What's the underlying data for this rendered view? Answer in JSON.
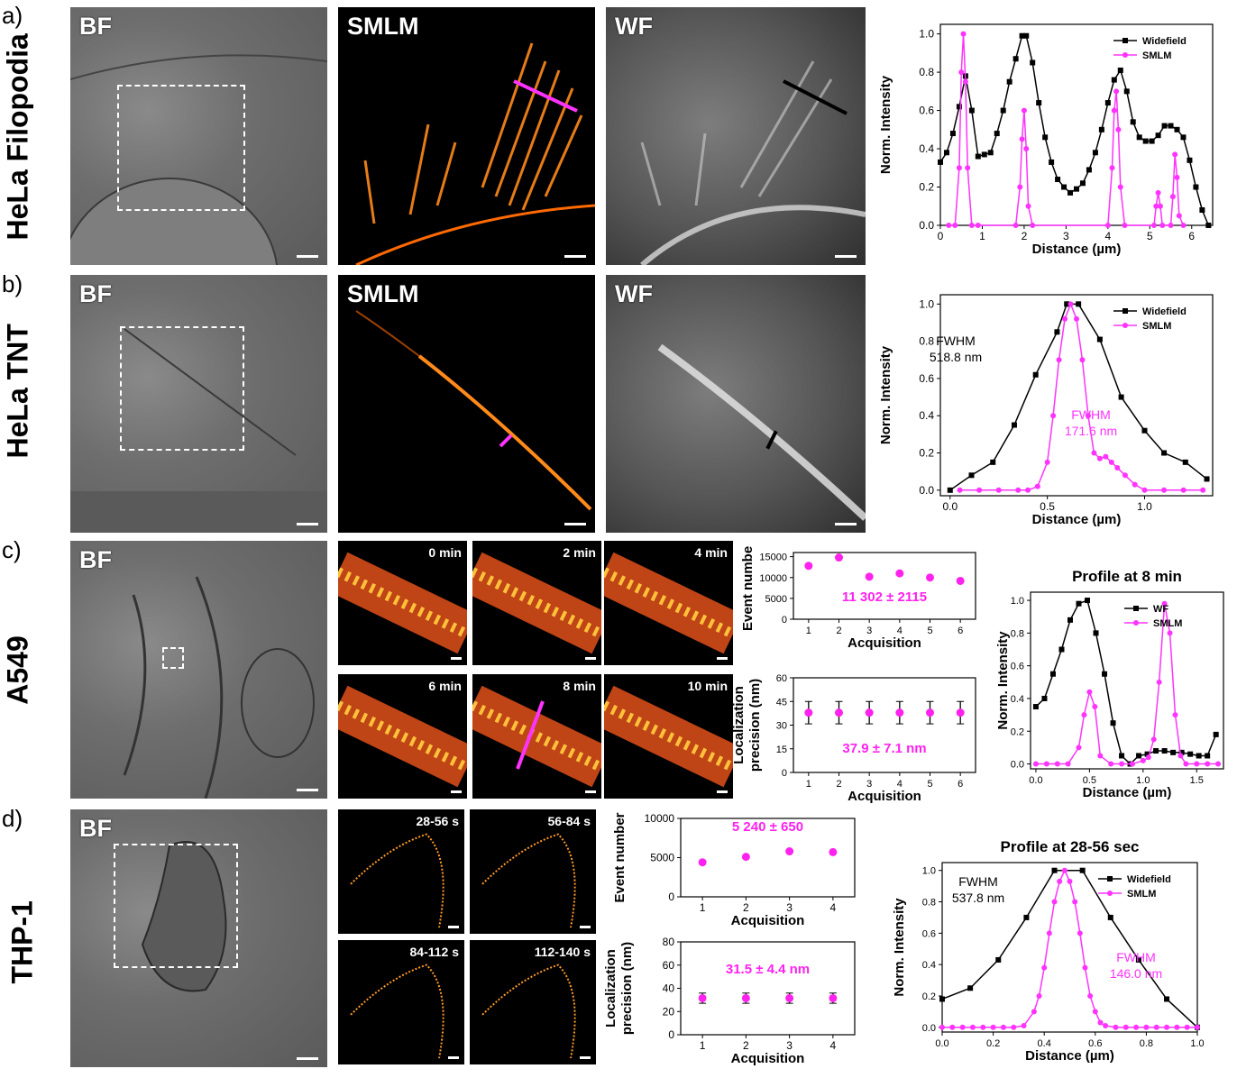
{
  "rows": {
    "a": {
      "letter": "a)",
      "label": "HeLa Filopodia"
    },
    "b": {
      "letter": "b)",
      "label": "HeLa TNT"
    },
    "c": {
      "letter": "c)",
      "label": "A549"
    },
    "d": {
      "letter": "d)",
      "label": "THP-1"
    }
  },
  "tags": {
    "bf": "BF",
    "smlm": "SMLM",
    "wf": "WF"
  },
  "timepoints_c": [
    "0 min",
    "2 min",
    "4 min",
    "6 min",
    "8 min",
    "10 min"
  ],
  "timepoints_d": [
    "28-56 s",
    "56-84 s",
    "84-112 s",
    "112-140 s"
  ],
  "colors": {
    "widefield": "#000000",
    "smlm": "#ff33ff",
    "accent_magenta": "#ff22ee"
  },
  "chart_data": [
    {
      "id": "a_profile",
      "type": "line",
      "xlabel": "Distance (µm)",
      "ylabel": "Norm. Intensity",
      "xlim": [
        0,
        6.5
      ],
      "ylim": [
        0,
        1.05
      ],
      "xticks": [
        0,
        1,
        2,
        3,
        4,
        5,
        6
      ],
      "yticks": [
        0.0,
        0.2,
        0.4,
        0.6,
        0.8,
        1.0
      ],
      "legend_position": "top-right",
      "series": [
        {
          "name": "Widefield",
          "color": "#000000",
          "marker": "square",
          "x": [
            0,
            0.15,
            0.3,
            0.45,
            0.6,
            0.75,
            0.9,
            1.05,
            1.2,
            1.35,
            1.5,
            1.65,
            1.8,
            1.95,
            2.05,
            2.2,
            2.35,
            2.5,
            2.65,
            2.8,
            2.95,
            3.1,
            3.25,
            3.4,
            3.55,
            3.7,
            3.85,
            4.0,
            4.15,
            4.3,
            4.45,
            4.6,
            4.75,
            4.9,
            5.05,
            5.2,
            5.35,
            5.5,
            5.65,
            5.8,
            5.95,
            6.1,
            6.25,
            6.4
          ],
          "y": [
            0.33,
            0.38,
            0.48,
            0.62,
            0.78,
            0.6,
            0.36,
            0.37,
            0.38,
            0.48,
            0.6,
            0.75,
            0.87,
            0.99,
            0.99,
            0.85,
            0.64,
            0.46,
            0.33,
            0.24,
            0.2,
            0.17,
            0.19,
            0.22,
            0.29,
            0.38,
            0.5,
            0.64,
            0.76,
            0.81,
            0.7,
            0.54,
            0.46,
            0.44,
            0.44,
            0.47,
            0.52,
            0.52,
            0.5,
            0.46,
            0.34,
            0.2,
            0.08,
            0.0
          ]
        },
        {
          "name": "SMLM",
          "color": "#ff33ff",
          "marker": "circle",
          "x": [
            0.2,
            0.35,
            0.45,
            0.5,
            0.55,
            0.6,
            0.65,
            0.75,
            0.9,
            1.8,
            1.9,
            1.95,
            2.0,
            2.05,
            2.1,
            2.2,
            4.0,
            4.1,
            4.15,
            4.2,
            4.25,
            4.3,
            4.4,
            5.1,
            5.15,
            5.2,
            5.25,
            5.3,
            5.5,
            5.55,
            5.6,
            5.65,
            5.7,
            5.8
          ],
          "y": [
            0,
            0,
            0.3,
            0.8,
            1.0,
            0.75,
            0.3,
            0,
            0,
            0,
            0.2,
            0.45,
            0.6,
            0.4,
            0.1,
            0,
            0,
            0.3,
            0.6,
            0.7,
            0.5,
            0.2,
            0,
            0,
            0.1,
            0.17,
            0.1,
            0,
            0,
            0.15,
            0.37,
            0.25,
            0.05,
            0
          ]
        }
      ]
    },
    {
      "id": "b_profile",
      "type": "line",
      "xlabel": "Distance (µm)",
      "ylabel": "Norm. Intensity",
      "xlim": [
        -0.05,
        1.35
      ],
      "ylim": [
        -0.03,
        1.05
      ],
      "xticks": [
        0.0,
        0.5,
        1.0
      ],
      "yticks": [
        0.0,
        0.2,
        0.4,
        0.6,
        0.8,
        1.0
      ],
      "legend_position": "top-right",
      "annotations": [
        {
          "text": "FWHM",
          "text2": "518.8 nm",
          "color": "#000000"
        },
        {
          "text": "FWHM",
          "text2": "171.6 nm",
          "color": "#ff33ff"
        }
      ],
      "series": [
        {
          "name": "Widefield",
          "color": "#000000",
          "marker": "square",
          "x": [
            0.0,
            0.11,
            0.22,
            0.33,
            0.44,
            0.55,
            0.6,
            0.66,
            0.77,
            0.88,
            1.0,
            1.1,
            1.21,
            1.32
          ],
          "y": [
            0.0,
            0.08,
            0.15,
            0.35,
            0.62,
            0.85,
            1.0,
            1.0,
            0.81,
            0.5,
            0.32,
            0.2,
            0.15,
            0.06
          ]
        },
        {
          "name": "SMLM",
          "color": "#ff33ff",
          "marker": "circle",
          "x": [
            0.05,
            0.15,
            0.25,
            0.35,
            0.4,
            0.45,
            0.5,
            0.53,
            0.56,
            0.59,
            0.62,
            0.65,
            0.68,
            0.71,
            0.74,
            0.77,
            0.8,
            0.83,
            0.86,
            0.9,
            0.95,
            1.0,
            1.1,
            1.2,
            1.3
          ],
          "y": [
            0,
            0,
            0,
            0,
            0,
            0.02,
            0.15,
            0.4,
            0.7,
            0.92,
            1.0,
            0.92,
            0.7,
            0.4,
            0.2,
            0.17,
            0.18,
            0.15,
            0.12,
            0.08,
            0.03,
            0.0,
            0,
            0,
            0
          ]
        }
      ]
    },
    {
      "id": "c_events",
      "type": "scatter",
      "xlabel": "Acquisition",
      "ylabel": "Event number",
      "xlim": [
        0.5,
        6.5
      ],
      "ylim": [
        0,
        16000
      ],
      "xticks": [
        1,
        2,
        3,
        4,
        5,
        6
      ],
      "yticks": [
        0,
        5000,
        10000,
        15000
      ],
      "annotation": "11 302 ± 2115",
      "series": [
        {
          "name": "",
          "color": "#ff22ee",
          "x": [
            1,
            2,
            3,
            4,
            5,
            6
          ],
          "y": [
            12800,
            14800,
            10200,
            11000,
            10000,
            9200
          ]
        }
      ]
    },
    {
      "id": "c_precision",
      "type": "scatter",
      "xlabel": "Acquisition",
      "ylabel": "Localization precision (nm)",
      "xlim": [
        0.5,
        6.5
      ],
      "ylim": [
        0,
        60
      ],
      "xticks": [
        1,
        2,
        3,
        4,
        5,
        6
      ],
      "yticks": [
        0,
        15,
        30,
        45,
        60
      ],
      "annotation": "37.9 ± 7.1 nm",
      "series": [
        {
          "name": "",
          "color": "#ff22ee",
          "x": [
            1,
            2,
            3,
            4,
            5,
            6
          ],
          "y": [
            37.9,
            37.9,
            37.9,
            37.9,
            37.9,
            37.9
          ],
          "err": [
            7.1,
            7.1,
            7.1,
            7.1,
            7.1,
            7.1
          ]
        }
      ]
    },
    {
      "id": "c_profile",
      "type": "line",
      "title": "Profile at 8 min",
      "xlabel": "Distance (µm)",
      "ylabel": "Norm. Intensity",
      "xlim": [
        -0.05,
        1.75
      ],
      "ylim": [
        -0.03,
        1.05
      ],
      "xticks": [
        0.0,
        0.5,
        1.0,
        1.5
      ],
      "yticks": [
        0.0,
        0.2,
        0.4,
        0.6,
        0.8,
        1.0
      ],
      "legend_position": "top-right",
      "series": [
        {
          "name": "WF",
          "color": "#000000",
          "marker": "square",
          "x": [
            0.0,
            0.08,
            0.16,
            0.24,
            0.32,
            0.4,
            0.48,
            0.56,
            0.64,
            0.72,
            0.8,
            0.88,
            0.96,
            1.04,
            1.12,
            1.2,
            1.28,
            1.36,
            1.44,
            1.52,
            1.6,
            1.68
          ],
          "y": [
            0.35,
            0.4,
            0.55,
            0.7,
            0.88,
            0.98,
            1.0,
            0.8,
            0.55,
            0.25,
            0.05,
            0.0,
            0.05,
            0.06,
            0.08,
            0.08,
            0.07,
            0.07,
            0.06,
            0.05,
            0.05,
            0.18
          ]
        },
        {
          "name": "SMLM",
          "color": "#ff33ff",
          "marker": "circle",
          "x": [
            0.0,
            0.1,
            0.2,
            0.3,
            0.4,
            0.45,
            0.5,
            0.55,
            0.6,
            0.7,
            0.8,
            0.9,
            1.0,
            1.05,
            1.1,
            1.15,
            1.2,
            1.25,
            1.3,
            1.35,
            1.4,
            1.5,
            1.6,
            1.7
          ],
          "y": [
            0,
            0,
            0,
            0,
            0.1,
            0.3,
            0.44,
            0.35,
            0.05,
            0,
            0,
            0,
            0.02,
            0.04,
            0.15,
            0.5,
            0.98,
            0.8,
            0.3,
            0.05,
            0,
            0,
            0,
            0
          ]
        }
      ]
    },
    {
      "id": "d_events",
      "type": "scatter",
      "xlabel": "Acquisition",
      "ylabel": "Event number",
      "xlim": [
        0.5,
        4.5
      ],
      "ylim": [
        0,
        10000
      ],
      "xticks": [
        1,
        2,
        3,
        4
      ],
      "yticks": [
        0,
        5000,
        10000
      ],
      "annotation": "5 240 ± 650",
      "series": [
        {
          "name": "",
          "color": "#ff22ee",
          "x": [
            1,
            2,
            3,
            4
          ],
          "y": [
            4400,
            5100,
            5800,
            5700
          ]
        }
      ]
    },
    {
      "id": "d_precision",
      "type": "scatter",
      "xlabel": "Acquisition",
      "ylabel": "Localization precision (nm)",
      "xlim": [
        0.5,
        4.5
      ],
      "ylim": [
        0,
        80
      ],
      "xticks": [
        1,
        2,
        3,
        4
      ],
      "yticks": [
        0,
        20,
        40,
        60,
        80
      ],
      "annotation": "31.5 ± 4.4 nm",
      "series": [
        {
          "name": "",
          "color": "#ff22ee",
          "x": [
            1,
            2,
            3,
            4
          ],
          "y": [
            31.5,
            31.5,
            31.5,
            31.5
          ],
          "err": [
            4.4,
            4.4,
            4.4,
            4.4
          ]
        }
      ]
    },
    {
      "id": "d_profile",
      "type": "line",
      "title": "Profile at 28-56 sec",
      "xlabel": "Distance (µm)",
      "ylabel": "Norm. Intensity",
      "xlim": [
        0.0,
        1.0
      ],
      "ylim": [
        -0.03,
        1.05
      ],
      "xticks": [
        0.0,
        0.2,
        0.4,
        0.6,
        0.8,
        1.0
      ],
      "yticks": [
        0.0,
        0.2,
        0.4,
        0.6,
        0.8,
        1.0
      ],
      "legend_position": "top-right",
      "annotations": [
        {
          "text": "FWHM",
          "text2": "537.8 nm",
          "color": "#000000"
        },
        {
          "text": "FWHM",
          "text2": "146.0 nm",
          "color": "#ff33ff"
        }
      ],
      "series": [
        {
          "name": "Widefield",
          "color": "#000000",
          "marker": "square",
          "x": [
            0.0,
            0.11,
            0.22,
            0.33,
            0.44,
            0.55,
            0.66,
            0.77,
            0.88,
            1.0
          ],
          "y": [
            0.18,
            0.25,
            0.43,
            0.7,
            1.0,
            1.0,
            0.7,
            0.43,
            0.18,
            0.0
          ]
        },
        {
          "name": "SMLM",
          "color": "#ff33ff",
          "marker": "circle",
          "x": [
            0.0,
            0.04,
            0.08,
            0.12,
            0.16,
            0.2,
            0.24,
            0.28,
            0.32,
            0.36,
            0.38,
            0.4,
            0.42,
            0.44,
            0.46,
            0.48,
            0.5,
            0.52,
            0.54,
            0.56,
            0.58,
            0.6,
            0.62,
            0.64,
            0.68,
            0.72,
            0.76,
            0.8,
            0.84,
            0.88,
            0.92,
            0.96,
            1.0
          ],
          "y": [
            0,
            0,
            0,
            0,
            0,
            0,
            0,
            0,
            0.01,
            0.1,
            0.2,
            0.38,
            0.6,
            0.8,
            0.93,
            1.0,
            0.93,
            0.8,
            0.6,
            0.38,
            0.2,
            0.1,
            0.03,
            0.01,
            0,
            0,
            0,
            0,
            0,
            0,
            0,
            0,
            0
          ]
        }
      ]
    }
  ]
}
